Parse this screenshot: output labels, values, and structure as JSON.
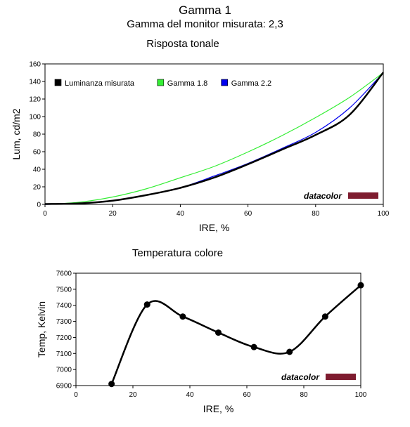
{
  "page": {
    "title": "Gamma 1",
    "subtitle": "Gamma del monitor misurata: 2,3"
  },
  "chart_data": [
    {
      "type": "line",
      "title": "Risposta tonale",
      "xlabel": "IRE, %",
      "ylabel": "Lum, cd/m2",
      "xlim": [
        0,
        100
      ],
      "ylim": [
        0,
        160
      ],
      "xticks": [
        0,
        20,
        40,
        60,
        80,
        100
      ],
      "yticks": [
        0,
        20,
        40,
        60,
        80,
        100,
        120,
        140,
        160
      ],
      "grid": false,
      "legend_position": "top-left",
      "x": [
        0,
        10,
        20,
        30,
        40,
        50,
        60,
        70,
        80,
        90,
        100
      ],
      "series": [
        {
          "name": "Luminanza misurata",
          "color": "#000000",
          "values": [
            0.4,
            1.1,
            4.2,
            10.6,
            18.8,
            30.5,
            45.7,
            62.3,
            79.1,
            101.9,
            150.3
          ]
        },
        {
          "name": "Gamma 1.8",
          "color": "#33ee33",
          "values": [
            0,
            2.4,
            8.4,
            17.8,
            30.3,
            43.2,
            59.7,
            78.2,
            98.9,
            121.8,
            150
          ]
        },
        {
          "name": "Gamma 2.2",
          "color": "#0000ee",
          "values": [
            0,
            0.9,
            3.9,
            10.8,
            19.0,
            32.3,
            46.7,
            63.7,
            82.0,
            109.7,
            150
          ]
        }
      ],
      "watermark": "datacolor"
    },
    {
      "type": "line",
      "title": "Temperatura colore",
      "xlabel": "IRE, %",
      "ylabel": "Temp, Kelvin",
      "xlim": [
        0,
        100
      ],
      "ylim": [
        6900,
        7600
      ],
      "xticks": [
        0,
        20,
        40,
        60,
        80,
        100
      ],
      "yticks": [
        6900,
        7000,
        7100,
        7200,
        7300,
        7400,
        7500,
        7600
      ],
      "grid": false,
      "x": [
        12.5,
        25,
        37.5,
        50,
        62.5,
        75,
        87.5,
        100
      ],
      "series": [
        {
          "color": "#000000",
          "values": [
            6910,
            7405,
            7330,
            7230,
            7140,
            7110,
            7330,
            7525
          ]
        }
      ],
      "watermark": "datacolor"
    }
  ]
}
